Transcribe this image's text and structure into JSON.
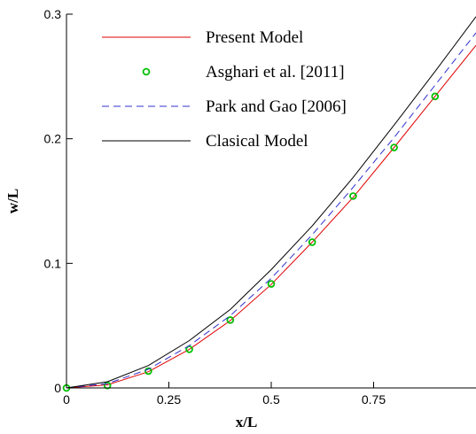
{
  "chart_data": {
    "type": "line",
    "title": "",
    "xlabel": "x/L",
    "ylabel": "w/L",
    "xlim": [
      0,
      1
    ],
    "ylim": [
      0,
      0.3
    ],
    "x_ticks": [
      0,
      0.25,
      0.5,
      0.75
    ],
    "x_tick_labels": [
      "0",
      "0.25",
      "0.5",
      "0.75"
    ],
    "y_ticks": [
      0,
      0.1,
      0.2,
      0.3
    ],
    "y_tick_labels": [
      "0",
      "0.1",
      "0.2",
      "0.3"
    ],
    "grid": false,
    "legend_position": "top-left",
    "series": [
      {
        "name": "Present Model",
        "style": "solid-line",
        "color": "#e00000",
        "x": [
          0,
          0.1,
          0.2,
          0.3,
          0.4,
          0.5,
          0.6,
          0.7,
          0.8,
          0.9,
          1.0
        ],
        "y": [
          0,
          0.0025,
          0.013,
          0.031,
          0.054,
          0.083,
          0.117,
          0.153,
          0.193,
          0.234,
          0.275
        ]
      },
      {
        "name": "Asghari et al. [2011]",
        "style": "circle-markers",
        "color": "#00c000",
        "x": [
          0,
          0.1,
          0.2,
          0.3,
          0.4,
          0.5,
          0.6,
          0.7,
          0.8,
          0.9
        ],
        "y": [
          0,
          0.002,
          0.0135,
          0.031,
          0.0545,
          0.0835,
          0.117,
          0.154,
          0.193,
          0.234
        ]
      },
      {
        "name": "Park and Gao [2006]",
        "style": "dashed-line",
        "color": "#3030d0",
        "x": [
          0,
          0.1,
          0.2,
          0.3,
          0.4,
          0.5,
          0.6,
          0.7,
          0.8,
          0.9,
          1.0
        ],
        "y": [
          0,
          0.0035,
          0.015,
          0.034,
          0.058,
          0.088,
          0.123,
          0.161,
          0.201,
          0.243,
          0.285
        ]
      },
      {
        "name": "Clasical Model",
        "style": "solid-line",
        "color": "#000000",
        "x": [
          0,
          0.1,
          0.2,
          0.3,
          0.4,
          0.5,
          0.6,
          0.7,
          0.8,
          0.9,
          1.0
        ],
        "y": [
          0,
          0.005,
          0.018,
          0.038,
          0.063,
          0.095,
          0.13,
          0.169,
          0.211,
          0.254,
          0.298
        ]
      }
    ]
  }
}
